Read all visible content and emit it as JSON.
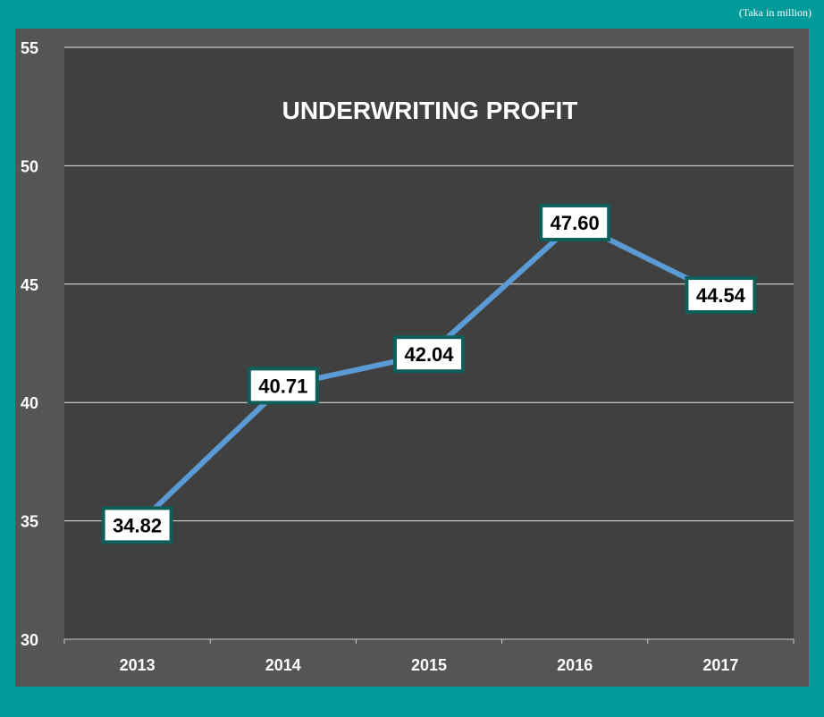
{
  "unit_note": "(Taka in million)",
  "colors": {
    "page_bg": "#009a9a",
    "frame_bg": "#555555",
    "plot_bg": "#404040",
    "line": "#5b9bd5",
    "label_border": "#0e5f5a",
    "gridline": "#e6e6e6"
  },
  "chart_data": {
    "type": "line",
    "title": "UNDERWRITING PROFIT",
    "xlabel": "",
    "ylabel": "",
    "categories": [
      "2013",
      "2014",
      "2015",
      "2016",
      "2017"
    ],
    "series": [
      {
        "name": "Underwriting Profit",
        "values": [
          34.82,
          40.71,
          42.04,
          47.6,
          44.54
        ]
      }
    ],
    "data_labels": [
      "34.82",
      "40.71",
      "42.04",
      "47.60",
      "44.54"
    ],
    "ylim": [
      30,
      55
    ],
    "yticks": [
      30,
      35,
      40,
      45,
      50,
      55
    ],
    "grid": true,
    "legend": "none"
  }
}
